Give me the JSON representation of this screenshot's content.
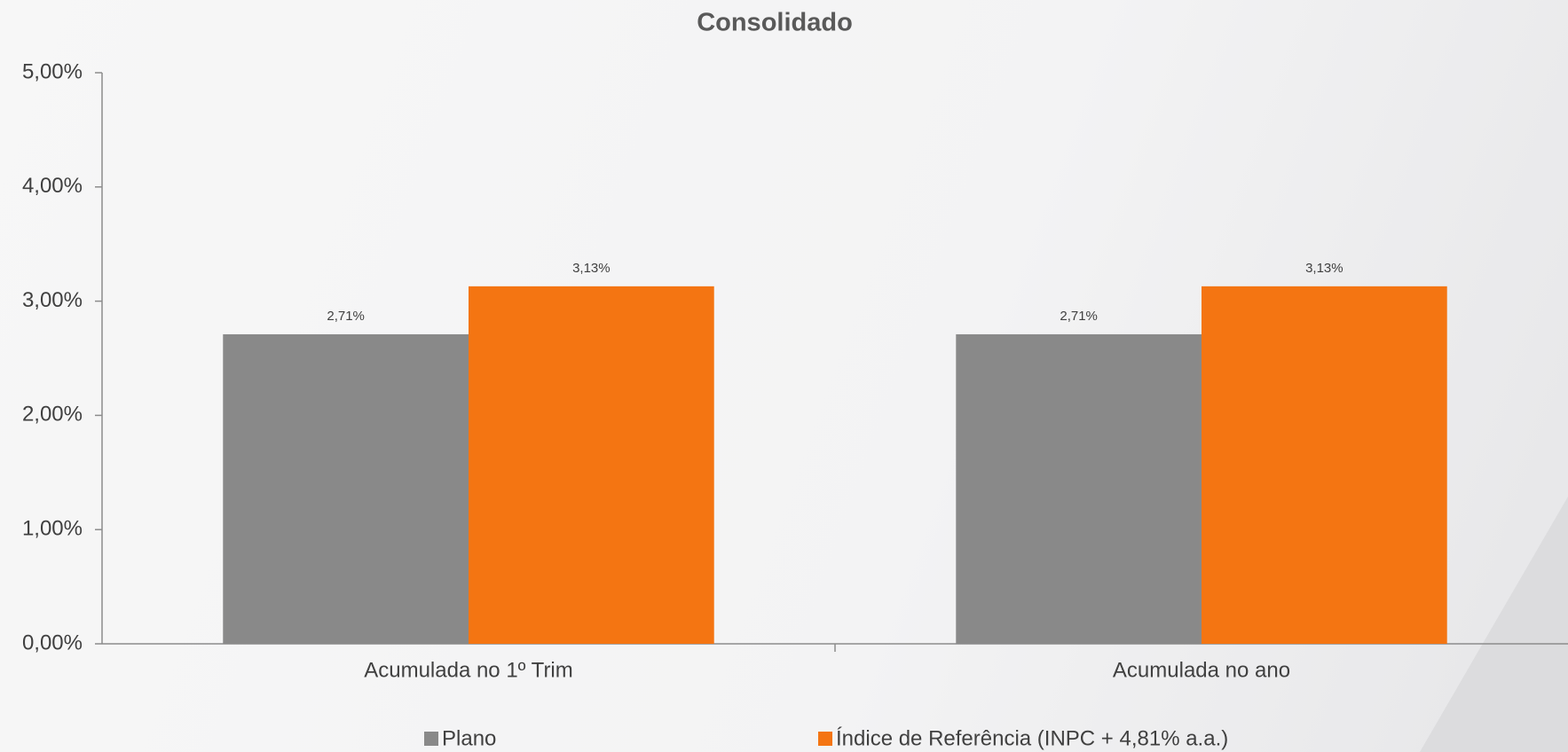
{
  "chart_data": {
    "type": "bar",
    "title": "Consolidado",
    "categories": [
      "Acumulada no 1º Trim",
      "Acumulada no ano"
    ],
    "series": [
      {
        "name": "Plano",
        "color": "#898989",
        "values": [
          2.71,
          2.71
        ],
        "value_labels": [
          "2,71%",
          "2,71%"
        ]
      },
      {
        "name": "Índice de Referência (INPC + 4,81% a.a.)",
        "color": "#f47512",
        "values": [
          3.13,
          3.13
        ],
        "value_labels": [
          "3,13%",
          "3,13%"
        ]
      }
    ],
    "ylim": [
      0,
      5
    ],
    "yticks": [
      {
        "value": 0,
        "label": "0,00%"
      },
      {
        "value": 1,
        "label": "1,00%"
      },
      {
        "value": 2,
        "label": "2,00%"
      },
      {
        "value": 3,
        "label": "3,00%"
      },
      {
        "value": 4,
        "label": "4,00%"
      },
      {
        "value": 5,
        "label": "5,00%"
      }
    ],
    "grid": false,
    "legend": "bottom"
  }
}
